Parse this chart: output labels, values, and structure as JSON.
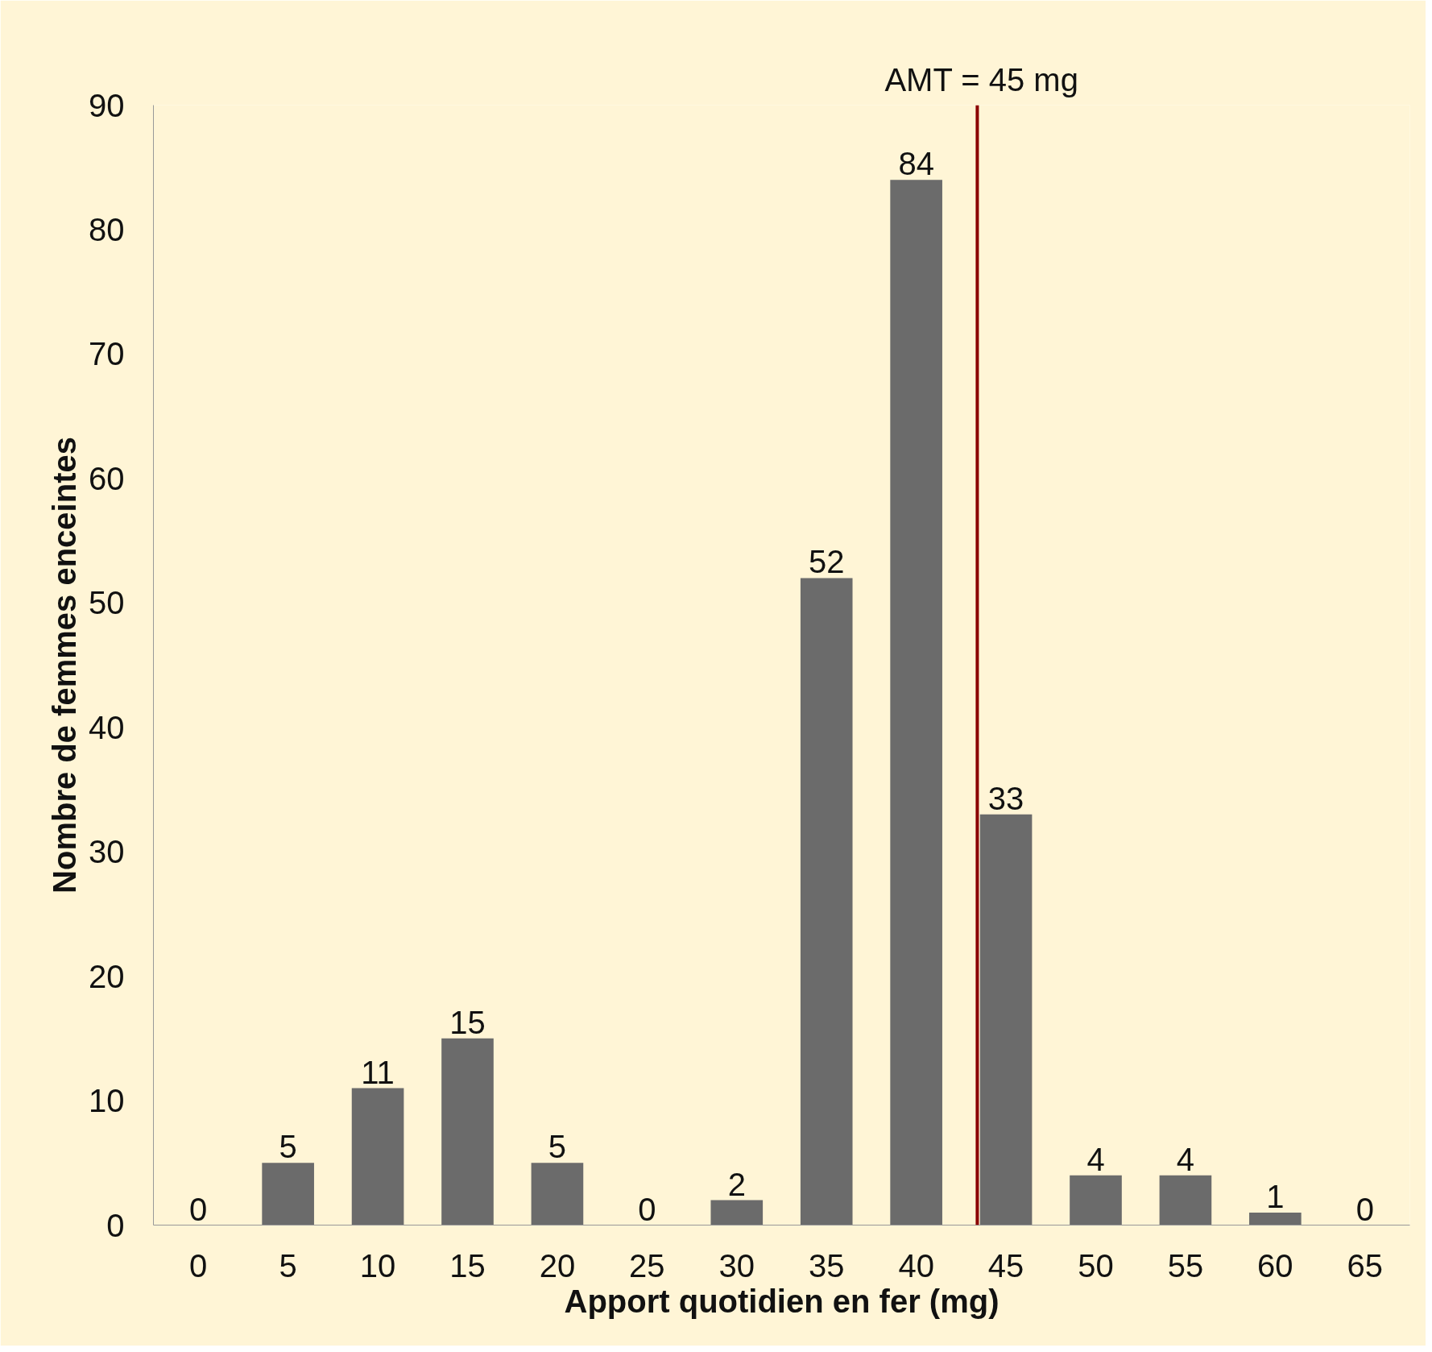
{
  "chart_data": {
    "type": "bar",
    "xlabel": "Apport quotidien en fer (mg)",
    "ylabel": "Nombre de femmes enceintes",
    "categories": [
      "0",
      "5",
      "10",
      "15",
      "20",
      "25",
      "30",
      "35",
      "40",
      "45",
      "50",
      "55",
      "60",
      "65"
    ],
    "values": [
      0,
      5,
      11,
      15,
      5,
      0,
      2,
      52,
      84,
      33,
      4,
      4,
      1,
      0
    ],
    "color": "#6b6b6b",
    "ylim": [
      0,
      90
    ],
    "yticks": [
      0,
      10,
      20,
      30,
      40,
      50,
      60,
      70,
      80,
      90
    ],
    "grid": false,
    "data_labels": true,
    "ref_lines": [
      {
        "axis": "x",
        "value": "45",
        "label": "AMT = 45 mg",
        "color": "#8b0000"
      }
    ]
  }
}
